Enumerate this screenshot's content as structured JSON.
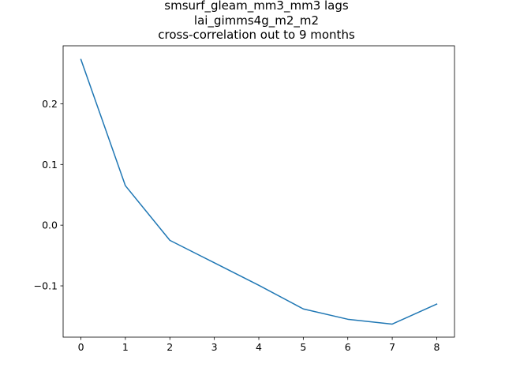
{
  "chart_data": {
    "type": "line",
    "title_lines": [
      "smsurf_gleam_mm3_mm3 lags",
      "lai_gimms4g_m2_m2",
      "cross-correlation out to 9 months"
    ],
    "xlabel": "",
    "ylabel": "",
    "x": [
      0,
      1,
      2,
      3,
      4,
      5,
      6,
      7,
      8
    ],
    "series": [
      {
        "values": [
          0.273,
          0.065,
          -0.025,
          -0.062,
          -0.099,
          -0.138,
          -0.155,
          -0.163,
          -0.13
        ],
        "color": "#1f77b4"
      }
    ],
    "xlim": [
      -0.4,
      8.4
    ],
    "ylim": [
      -0.1845,
      0.2955
    ],
    "xticks": [
      0,
      1,
      2,
      3,
      4,
      5,
      6,
      7,
      8
    ],
    "xtick_labels": [
      "0",
      "1",
      "2",
      "3",
      "4",
      "5",
      "6",
      "7",
      "8"
    ],
    "yticks": [
      -0.1,
      0.0,
      0.1,
      0.2
    ],
    "ytick_labels": [
      "−0.1",
      "0.0",
      "0.1",
      "0.2"
    ],
    "grid": false,
    "legend": "none"
  }
}
